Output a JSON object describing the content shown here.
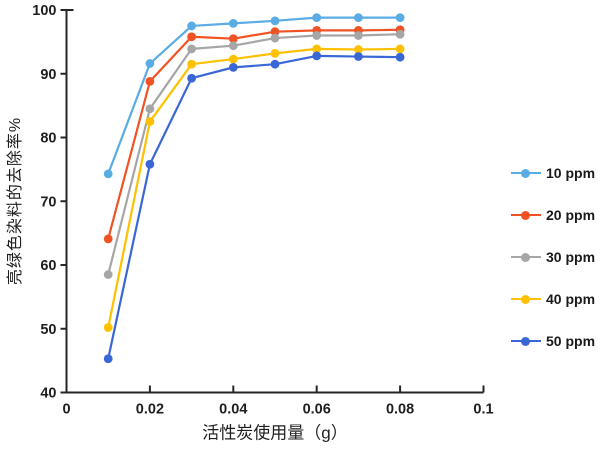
{
  "chart_data": {
    "type": "line",
    "title": "",
    "xlabel": "活性炭使用量（g）",
    "ylabel": "亮绿色染料的去除率%",
    "xlim": [
      0,
      0.1
    ],
    "ylim": [
      40,
      100
    ],
    "grid": false,
    "legend_position": "right",
    "x_ticks": [
      0,
      0.02,
      0.04,
      0.06,
      0.08,
      0.1
    ],
    "x_tick_labels": [
      "0",
      "0.02",
      "0.04",
      "0.06",
      "0.08",
      "0.1"
    ],
    "y_ticks": [
      40,
      50,
      60,
      70,
      80,
      90,
      100
    ],
    "y_tick_labels": [
      "40",
      "50",
      "60",
      "70",
      "80",
      "90",
      "100"
    ],
    "x": [
      0.01,
      0.02,
      0.03,
      0.04,
      0.05,
      0.06,
      0.07,
      0.08
    ],
    "series": [
      {
        "name": "10 ppm",
        "color": "#5AACE4",
        "values": [
          74.3,
          91.6,
          97.5,
          97.9,
          98.3,
          98.8,
          98.8,
          98.8
        ]
      },
      {
        "name": "20 ppm",
        "color": "#F05323",
        "values": [
          64.1,
          88.8,
          95.8,
          95.5,
          96.6,
          96.8,
          96.8,
          96.9
        ]
      },
      {
        "name": "30 ppm",
        "color": "#A6A6A6",
        "values": [
          58.5,
          84.5,
          93.9,
          94.4,
          95.6,
          96.0,
          96.0,
          96.2
        ]
      },
      {
        "name": "40 ppm",
        "color": "#FFC000",
        "values": [
          50.2,
          82.5,
          91.5,
          92.3,
          93.2,
          93.9,
          93.8,
          93.9
        ]
      },
      {
        "name": "50 ppm",
        "color": "#3A67D6",
        "values": [
          45.3,
          75.8,
          89.3,
          91.0,
          91.5,
          92.8,
          92.7,
          92.6
        ]
      }
    ],
    "axis_color": "#262626",
    "tick_label_color": "#1f1f1f"
  }
}
